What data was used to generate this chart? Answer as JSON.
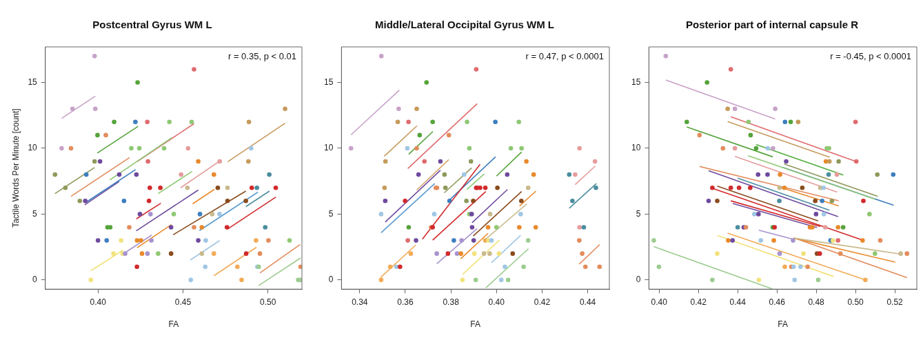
{
  "chart_data": [
    {
      "type": "scatter",
      "title": "Postcentral Gyrus WM L",
      "xlabel": "FA",
      "ylabel": "Tactile Words Per Minute [count]",
      "annotations": [
        "r = 0.35, p < 0.01"
      ],
      "xlim": [
        0.369,
        0.52
      ],
      "xticks": [
        {
          "value": 0.4,
          "label": "0.40"
        },
        {
          "value": 0.45,
          "label": "0.45"
        },
        {
          "value": 0.5,
          "label": "0.50"
        }
      ],
      "ylim": [
        -0.7,
        17.7
      ],
      "yticks": [
        0,
        5,
        10,
        15
      ],
      "series": [
        {
          "marker": "circle",
          "x": [
            0.398,
            0.4233,
            0.385,
            0.3984,
            0.4095,
            0.422,
            0.429,
            0.442,
            0.3997,
            0.4046,
            0.3786,
            0.3841,
            0.4196,
            0.4243,
            0.4389,
            0.398,
            0.4012,
            0.4294,
            0.3747,
            0.3931,
            0.4125,
            0.4226,
            0.3808,
            0.4305,
            0.4367,
            0.3893,
            0.3925,
            0.4153,
            0.43,
            0.4247,
            0.4309,
            0.4056,
            0.4072,
            0.4184,
            0.443,
            0.4,
            0.4051,
            0.4136,
            0.423,
            0.4253,
            0.4314,
            0.4091,
            0.4145,
            0.416,
            0.4259,
            0.4291,
            0.4354,
            0.443,
            0.4229,
            0.3958,
            0.4565,
            0.5101,
            0.4551,
            0.4888,
            0.453,
            0.4901,
            0.459,
            0.4716,
            0.4885,
            0.4489,
            0.4682,
            0.5008,
            0.4526,
            0.4705,
            0.4762,
            0.4905,
            0.4935,
            0.5046,
            0.4762,
            0.487,
            0.4446,
            0.46,
            0.4672,
            0.4715,
            0.4565,
            0.4611,
            0.4759,
            0.4984,
            0.459,
            0.4634,
            0.493,
            0.5003,
            0.5127,
            0.4611,
            0.4682,
            0.4872,
            0.4953,
            0.4631,
            0.482,
            0.4938,
            0.4946,
            0.5192,
            0.4546,
            0.4845,
            0.5178,
            0.5192
          ],
          "values": [
            17,
            15,
            13,
            13,
            12,
            12,
            12,
            12,
            11,
            11,
            10,
            10,
            10,
            10,
            10,
            9,
            9,
            9,
            8,
            8,
            8,
            8,
            7,
            7,
            7,
            6,
            6,
            6,
            6,
            5,
            5,
            4,
            4,
            4,
            4,
            3,
            3,
            3,
            3,
            3,
            3,
            2,
            2,
            2,
            2,
            2,
            2,
            2,
            1,
            0,
            16,
            13,
            12,
            12,
            10,
            10,
            9,
            9,
            9,
            8,
            8,
            8,
            7,
            7,
            7,
            7,
            7,
            7,
            6,
            6,
            5,
            5,
            5,
            5,
            4,
            4,
            4,
            4,
            3,
            3,
            3,
            3,
            3,
            2,
            2,
            2,
            2,
            1,
            1,
            1,
            1,
            1,
            0,
            0,
            0,
            0
          ],
          "colors": [
            "#c8a2c8",
            "#55a33b",
            "#c8a2c8",
            "#c8a2c8",
            "#55a33b",
            "#3d7ebf",
            "#df6b6e",
            "#8fc874",
            "#55a33b",
            "#e38c5c",
            "#c8a2c8",
            "#e38c5c",
            "#8fc874",
            "#8fc874",
            "#8fc874",
            "#8e9a5b",
            "#6e4a9e",
            "#df6b6e",
            "#8e9a5b",
            "#3d7ebf",
            "#6e4a9e",
            "#6e4a9e",
            "#8e9a5b",
            "#d12a2c",
            "#d12a2c",
            "#8e9a5b",
            "#6e4a9e",
            "#3d7ebf",
            "#d12a2c",
            "#6e4a9e",
            "#a793cf",
            "#55a33b",
            "#55a33b",
            "#e38c5c",
            "#6e4a9e",
            "#6e4a9e",
            "#3d7ebf",
            "#f1e27c",
            "#e9892a",
            "#e9892a",
            "#a793cf",
            "#f1e27c",
            "#f1e27c",
            "#a793cf",
            "#e9892a",
            "#a793cf",
            "#8fc874",
            "#8a4b1d",
            "#d12a2c",
            "#f1e27c",
            "#df6b6e",
            "#c59a5a",
            "#8fc874",
            "#c59a5a",
            "#e69c9c",
            "#a0c6e4",
            "#e9892a",
            "#e69c9c",
            "#c59a5a",
            "#e69c9c",
            "#e9892a",
            "#4b8d9f",
            "#c9ba8c",
            "#8a4b1d",
            "#c9ba8c",
            "#d12a2c",
            "#4b8d9f",
            "#d12a2c",
            "#8a4b1d",
            "#8a4b1d",
            "#8fc874",
            "#3d7ebf",
            "#c9ba8c",
            "#a0c6e4",
            "#e38c5c",
            "#e9892a",
            "#d12a2c",
            "#4b8d9f",
            "#6e4a9e",
            "#a0c6e4",
            "#f1ab56",
            "#e38c5c",
            "#8fc874",
            "#c9ba8c",
            "#f1ab56",
            "#d12a2c",
            "#e38c5c",
            "#a0c6e4",
            "#f1ab56",
            "#a0c6e4",
            "#9ccc8f",
            "#e38c5c",
            "#a0c6e4",
            "#f1ab56",
            "#9ccc8f",
            "#9ccc8f"
          ]
        },
        {
          "type": "line",
          "color": "#c8a2c8",
          "x": [
            0.3786,
            0.3984
          ],
          "values": [
            12.27,
            13.96
          ]
        },
        {
          "type": "line",
          "color": "#55a33b",
          "x": [
            0.3996,
            0.4236
          ],
          "values": [
            9.64,
            11.67
          ]
        },
        {
          "type": "line",
          "color": "#8e9a5b",
          "x": [
            0.3747,
            0.398
          ],
          "values": [
            6.56,
            8.54
          ]
        },
        {
          "type": "line",
          "color": "#e38c5c",
          "x": [
            0.3841,
            0.4186
          ],
          "values": [
            6.35,
            9.3
          ]
        },
        {
          "type": "line",
          "color": "#8fc874",
          "x": [
            0.407,
            0.4434
          ],
          "values": [
            7.6,
            10.8
          ]
        },
        {
          "type": "line",
          "color": "#df6b6e",
          "x": [
            0.423,
            0.4565
          ],
          "values": [
            8.98,
            11.87
          ]
        },
        {
          "type": "line",
          "color": "#3d7ebf",
          "x": [
            0.3931,
            0.4221
          ],
          "values": [
            5.91,
            8.38
          ]
        },
        {
          "type": "line",
          "color": "#6e4a9e",
          "x": [
            0.3922,
            0.4125
          ],
          "values": [
            5.71,
            7.48
          ]
        },
        {
          "type": "line",
          "color": "#d12a2c",
          "x": [
            0.4226,
            0.437
          ],
          "values": [
            4.64,
            5.83
          ]
        },
        {
          "type": "line",
          "color": "#6e4a9e",
          "x": [
            0.4225,
            0.459
          ],
          "values": [
            3.73,
            6.83
          ]
        },
        {
          "type": "line",
          "color": "#a793cf",
          "x": [
            0.4152,
            0.4316
          ],
          "values": [
            2.01,
            3.41
          ]
        },
        {
          "type": "line",
          "color": "#e9892a",
          "x": [
            0.423,
            0.4432
          ],
          "values": [
            2.45,
            4.2
          ]
        },
        {
          "type": "line",
          "color": "#f1e27c",
          "x": [
            0.3958,
            0.4146
          ],
          "values": [
            0.7,
            2.26
          ]
        },
        {
          "type": "line",
          "color": "#8fc874",
          "x": [
            0.4354,
            0.4554
          ],
          "values": [
            6.56,
            8.25
          ]
        },
        {
          "type": "line",
          "color": "#e69c9c",
          "x": [
            0.4486,
            0.4716
          ],
          "values": [
            7.0,
            9.03
          ]
        },
        {
          "type": "line",
          "color": "#e9892a",
          "x": [
            0.4557,
            0.4685
          ],
          "values": [
            5.78,
            6.88
          ]
        },
        {
          "type": "line",
          "color": "#8a4b1d",
          "x": [
            0.4442,
            0.487
          ],
          "values": [
            3.43,
            6.75
          ]
        },
        {
          "type": "line",
          "color": "#5b9bd0",
          "x": [
            0.4597,
            0.4941
          ],
          "values": [
            3.75,
            6.67
          ]
        },
        {
          "type": "line",
          "color": "#4b8d9f",
          "x": [
            0.487,
            0.5009
          ],
          "values": [
            5.57,
            6.75
          ]
        },
        {
          "type": "line",
          "color": "#d12a2c",
          "x": [
            0.4762,
            0.5047
          ],
          "values": [
            3.86,
            6.3
          ]
        },
        {
          "type": "line",
          "color": "#c59a5a",
          "x": [
            0.4764,
            0.5101
          ],
          "values": [
            8.98,
            11.9
          ]
        },
        {
          "type": "line",
          "color": "#a0c6e4",
          "x": [
            0.4543,
            0.4716
          ],
          "values": [
            1.51,
            2.99
          ]
        },
        {
          "type": "line",
          "color": "#f1ab56",
          "x": [
            0.4682,
            0.4932
          ],
          "values": [
            0.32,
            2.48
          ]
        },
        {
          "type": "line",
          "color": "#e38c5c",
          "x": [
            0.4953,
            0.519
          ],
          "values": [
            0.54,
            2.7
          ]
        },
        {
          "type": "line",
          "color": "#9ccc8f",
          "x": [
            0.4946,
            0.5192
          ],
          "values": [
            -0.42,
            1.67
          ]
        }
      ]
    },
    {
      "type": "scatter",
      "title": "Middle/Lateral Occipital Gyrus WM L",
      "xlabel": "FA",
      "annotations": [
        "r = 0.47, p < 0.0001"
      ],
      "xlim": [
        0.332,
        0.4495
      ],
      "xticks": [
        {
          "value": 0.34,
          "label": "0.34"
        },
        {
          "value": 0.36,
          "label": "0.36"
        },
        {
          "value": 0.38,
          "label": "0.38"
        },
        {
          "value": 0.4,
          "label": "0.40"
        },
        {
          "value": 0.42,
          "label": "0.42"
        },
        {
          "value": 0.44,
          "label": "0.44"
        }
      ],
      "ylim": [
        -0.7,
        17.7
      ],
      "yticks": [
        0,
        5,
        10,
        15
      ],
      "series": [
        {
          "marker": "circle",
          "x": [
            0.3495,
            0.3911,
            0.3693,
            0.3571,
            0.365,
            0.3567,
            0.3614,
            0.372,
            0.3871,
            0.3663,
            0.3791,
            0.3362,
            0.3609,
            0.365,
            0.3881,
            0.3513,
            0.3684,
            0.3754,
            0.3888,
            0.3658,
            0.3772,
            0.3858,
            0.3509,
            0.3734,
            0.3739,
            0.3776,
            0.3911,
            0.3512,
            0.3599,
            0.3794,
            0.3868,
            0.3898,
            0.3494,
            0.3727,
            0.3881,
            0.3891,
            0.3615,
            0.3713,
            0.372,
            0.3893,
            0.3611,
            0.3647,
            0.3813,
            0.3847,
            0.39,
            0.3624,
            0.3738,
            0.3787,
            0.3827,
            0.3844,
            0.3903,
            0.3534,
            0.3561,
            0.3577,
            0.3494,
            0.3851,
            0.3909,
            0.3995,
            0.4098,
            0.4063,
            0.411,
            0.4364,
            0.4131,
            0.4432,
            0.4047,
            0.4163,
            0.4319,
            0.4345,
            0.3915,
            0.3928,
            0.3951,
            0.4004,
            0.4139,
            0.4436,
            0.4109,
            0.4333,
            0.3972,
            0.4106,
            0.3963,
            0.4,
            0.41,
            0.4172,
            0.4364,
            0.4383,
            0.3951,
            0.3965,
            0.3978,
            0.4139,
            0.4363,
            0.3945,
            0.397,
            0.4011,
            0.4071,
            0.4376,
            0.4037,
            0.4119,
            0.439,
            0.4452,
            0.4021,
            0.4051
          ],
          "values": [
            17,
            16,
            15,
            13,
            13,
            12,
            12,
            12,
            12,
            11,
            11,
            10,
            10,
            10,
            10,
            9,
            9,
            9,
            9,
            8,
            8,
            8,
            7,
            7,
            7,
            7,
            7,
            6,
            6,
            6,
            6,
            6,
            5,
            5,
            5,
            5,
            4,
            4,
            4,
            4,
            3,
            3,
            3,
            3,
            3,
            2,
            2,
            2,
            2,
            2,
            2,
            1,
            1,
            1,
            0,
            0,
            0,
            12,
            12,
            10,
            10,
            10,
            9,
            9,
            8,
            8,
            8,
            8,
            7,
            7,
            7,
            7,
            7,
            7,
            6,
            6,
            5,
            5,
            4,
            4,
            4,
            4,
            4,
            4,
            3,
            3,
            3,
            3,
            3,
            2,
            2,
            2,
            2,
            2,
            1,
            1,
            1,
            1,
            0,
            0
          ],
          "colors": [
            "#c8a2c8",
            "#df6b6e",
            "#55a33b",
            "#c8a2c8",
            "#c59a5a",
            "#c59a5a",
            "#df6b6e",
            "#55a33b",
            "#8fc874",
            "#55a33b",
            "#e38c5c",
            "#c8a2c8",
            "#a0c6e4",
            "#e38c5c",
            "#8fc874",
            "#c59a5a",
            "#df6b6e",
            "#6e4a9e",
            "#8e9a5b",
            "#6e4a9e",
            "#8e9a5b",
            "#a0c6e4",
            "#c59a5a",
            "#e38c5c",
            "#e38c5c",
            "#8e9a5b",
            "#d12a2c",
            "#6e4a9e",
            "#d12a2c",
            "#3d7ebf",
            "#8e9a5b",
            "#8a4b1d",
            "#a0c6e4",
            "#a0c6e4",
            "#8fc874",
            "#6e4a9e",
            "#55a33b",
            "#e38c5c",
            "#d12a2c",
            "#6e4a9e",
            "#df6b6e",
            "#6e4a9e",
            "#3d7ebf",
            "#a793cf",
            "#6e4a9e",
            "#f1ab56",
            "#a793cf",
            "#d12a2c",
            "#a793cf",
            "#e9892a",
            "#f1e27c",
            "#f1ab56",
            "#a0c6e4",
            "#d12a2c",
            "#f1ab56",
            "#f1e27c",
            "#9ccc8f",
            "#3d7ebf",
            "#8fc874",
            "#8fc874",
            "#8fc874",
            "#e69c9c",
            "#e9892a",
            "#e69c9c",
            "#6e4a9e",
            "#e9892a",
            "#4b8d9f",
            "#e69c9c",
            "#d12a2c",
            "#d12a2c",
            "#d12a2c",
            "#8a4b1d",
            "#c9ba8c",
            "#4b8d9f",
            "#8a4b1d",
            "#4b8d9f",
            "#c9ba8c",
            "#a0c6e4",
            "#e9892a",
            "#8fc874",
            "#e9892a",
            "#e9892a",
            "#e69c9c",
            "#4b8d9f",
            "#f1ab56",
            "#f1e27c",
            "#a0c6e4",
            "#9ccc8f",
            "#e38c5c",
            "#c9ba8c",
            "#c9ba8c",
            "#f1e27c",
            "#8a4b1d",
            "#e38c5c",
            "#a0c6e4",
            "#9ccc8f",
            "#e38c5c",
            "#e38c5c",
            "#a0c6e4",
            "#9ccc8f"
          ]
        },
        {
          "type": "line",
          "color": "#c8a2c8",
          "x": [
            0.3362,
            0.3574
          ],
          "values": [
            11.02,
            14.42
          ]
        },
        {
          "type": "line",
          "color": "#c59a5a",
          "x": [
            0.3508,
            0.3651
          ],
          "values": [
            9.4,
            11.7
          ]
        },
        {
          "type": "line",
          "color": "#55a33b",
          "x": [
            0.3615,
            0.3721
          ],
          "values": [
            9.55,
            11.27
          ]
        },
        {
          "type": "line",
          "color": "#df6b6e",
          "x": [
            0.3611,
            0.3915
          ],
          "values": [
            8.46,
            13.38
          ]
        },
        {
          "type": "line",
          "color": "#d9a66e",
          "x": [
            0.365,
            0.3791
          ],
          "values": [
            6.83,
            9.14
          ]
        },
        {
          "type": "line",
          "color": "#6e4a9e",
          "x": [
            0.3512,
            0.3754
          ],
          "values": [
            4.4,
            8.33
          ]
        },
        {
          "type": "line",
          "color": "#5b9bd0",
          "x": [
            0.3494,
            0.3729
          ],
          "values": [
            3.59,
            7.32
          ]
        },
        {
          "type": "line",
          "color": "#d12a2c",
          "x": [
            0.3675,
            0.3928
          ],
          "values": [
            3.1,
            8.78
          ]
        },
        {
          "type": "line",
          "color": "#d12a2c",
          "x": [
            0.372,
            0.3953
          ],
          "values": [
            3.02,
            6.72
          ]
        },
        {
          "type": "line",
          "color": "#8e9a5b",
          "x": [
            0.3771,
            0.3891
          ],
          "values": [
            6.62,
            8.51
          ]
        },
        {
          "type": "line",
          "color": "#3d7ebf",
          "x": [
            0.3793,
            0.3996
          ],
          "values": [
            6.06,
            9.35
          ]
        },
        {
          "type": "line",
          "color": "#8fc874",
          "x": [
            0.387,
            0.3946
          ],
          "values": [
            6.87,
            8.05
          ]
        },
        {
          "type": "line",
          "color": "#f1ab56",
          "x": [
            0.3492,
            0.3646
          ],
          "values": [
            0.19,
            2.65
          ]
        },
        {
          "type": "line",
          "color": "#a793cf",
          "x": [
            0.3738,
            0.3915
          ],
          "values": [
            1.23,
            3.9
          ]
        },
        {
          "type": "line",
          "color": "#e9892a",
          "x": [
            0.3843,
            0.3963
          ],
          "values": [
            1.61,
            3.54
          ]
        },
        {
          "type": "line",
          "color": "#f1e27c",
          "x": [
            0.3851,
            0.4013
          ],
          "values": [
            0.42,
            3.02
          ]
        },
        {
          "type": "line",
          "color": "#55a33b",
          "x": [
            0.4,
            0.411
          ],
          "values": [
            7.89,
            9.72
          ]
        },
        {
          "type": "line",
          "color": "#6e4a9e",
          "x": [
            0.3893,
            0.4048
          ],
          "values": [
            4.35,
            6.87
          ]
        },
        {
          "type": "line",
          "color": "#8a4b1d",
          "x": [
            0.3898,
            0.411
          ],
          "values": [
            3.34,
            6.72
          ]
        },
        {
          "type": "line",
          "color": "#e9892a",
          "x": [
            0.4101,
            0.4173
          ],
          "values": [
            5.62,
            6.75
          ]
        },
        {
          "type": "line",
          "color": "#c9ba8c",
          "x": [
            0.3953,
            0.4133
          ],
          "values": [
            3.1,
            5.78
          ]
        },
        {
          "type": "line",
          "color": "#a0c6e4",
          "x": [
            0.3978,
            0.4106
          ],
          "values": [
            1.31,
            3.39
          ]
        },
        {
          "type": "line",
          "color": "#9ccc8f",
          "x": [
            0.3953,
            0.414
          ],
          "values": [
            -0.6,
            2.37
          ]
        },
        {
          "type": "line",
          "color": "#e69c9c",
          "x": [
            0.4345,
            0.4433
          ],
          "values": [
            7.24,
            8.65
          ]
        },
        {
          "type": "line",
          "color": "#4b8d9f",
          "x": [
            0.4319,
            0.4438
          ],
          "values": [
            5.45,
            7.32
          ]
        },
        {
          "type": "line",
          "color": "#e38c5c",
          "x": [
            0.4363,
            0.4453
          ],
          "values": [
            1.2,
            2.69
          ]
        }
      ]
    },
    {
      "type": "scatter",
      "title": "Posterior part of internal capsule R",
      "xlabel": "FA",
      "annotations": [
        "r = -0.45, p < 0.0001"
      ],
      "xlim": [
        0.3948,
        0.5312
      ],
      "xticks": [
        {
          "value": 0.4,
          "label": "0.40"
        },
        {
          "value": 0.42,
          "label": "0.42"
        },
        {
          "value": 0.44,
          "label": "0.44"
        },
        {
          "value": 0.46,
          "label": "0.46"
        },
        {
          "value": 0.48,
          "label": "0.48"
        },
        {
          "value": 0.5,
          "label": "0.50"
        },
        {
          "value": 0.52,
          "label": "0.52"
        }
      ],
      "ylim": [
        -0.7,
        17.7
      ],
      "yticks": [
        0,
        5,
        10,
        15
      ],
      "series": [
        {
          "marker": "circle",
          "x": [
            0.4034,
            0.4365,
            0.4244,
            0.4349,
            0.4386,
            0.4591,
            0.4141,
            0.4455,
            0.4641,
            0.467,
            0.4708,
            0.5,
            0.4206,
            0.4466,
            0.4325,
            0.4386,
            0.4494,
            0.4553,
            0.458,
            0.4854,
            0.4865,
            0.4647,
            0.4849,
            0.4867,
            0.4914,
            0.5004,
            0.4504,
            0.4552,
            0.4616,
            0.4863,
            0.4905,
            0.5111,
            0.5192,
            0.4271,
            0.4365,
            0.4407,
            0.4464,
            0.4614,
            0.4638,
            0.4729,
            0.4821,
            0.4837,
            0.4252,
            0.4296,
            0.4612,
            0.4795,
            0.483,
            0.488,
            0.504,
            0.4485,
            0.4506,
            0.4799,
            0.4839,
            0.5071,
            0.44,
            0.4431,
            0.4442,
            0.4579,
            0.4588,
            0.4768,
            0.478,
            0.4846,
            0.4911,
            0.4937,
            0.3973,
            0.4352,
            0.4374,
            0.4518,
            0.4584,
            0.4682,
            0.4873,
            0.4885,
            0.4911,
            0.5036,
            0.5126,
            0.4296,
            0.4614,
            0.4735,
            0.4804,
            0.4818,
            0.4923,
            0.5099,
            0.523,
            0.5262,
            0.3999,
            0.464,
            0.4673,
            0.4685,
            0.472,
            0.4756,
            0.4271,
            0.4508,
            0.469,
            0.481,
            0.505
          ],
          "values": [
            17,
            16,
            15,
            13,
            13,
            13,
            12,
            12,
            12,
            12,
            12,
            12,
            11,
            11,
            10,
            10,
            10,
            10,
            10,
            10,
            10,
            9,
            9,
            9,
            9,
            9,
            8,
            8,
            8,
            8,
            8,
            8,
            8,
            7,
            7,
            7,
            7,
            7,
            7,
            7,
            7,
            7,
            6,
            6,
            6,
            6,
            6,
            6,
            6,
            5,
            5,
            5,
            5,
            5,
            4,
            4,
            4,
            4,
            4,
            4,
            4,
            4,
            4,
            4,
            3,
            3,
            3,
            3,
            3,
            3,
            3,
            3,
            3,
            3,
            3,
            2,
            2,
            2,
            2,
            2,
            2,
            2,
            2,
            2,
            1,
            1,
            1,
            1,
            1,
            1,
            0,
            0,
            0,
            0,
            0
          ],
          "colors": [
            "#c8a2c8",
            "#df6b6e",
            "#55a33b",
            "#c59a5a",
            "#c8a2c8",
            "#c8a2c8",
            "#55a33b",
            "#8fc874",
            "#3d7ebf",
            "#55a33b",
            "#c59a5a",
            "#df6b6e",
            "#e38c5c",
            "#55a33b",
            "#e38c5c",
            "#e69c9c",
            "#55a33b",
            "#a0c6e4",
            "#c8a2c8",
            "#8fc874",
            "#8fc874",
            "#6e4a9e",
            "#e9892a",
            "#c59a5a",
            "#8e9a5b",
            "#df6b6e",
            "#6e4a9e",
            "#6e4a9e",
            "#e9892a",
            "#4b8d9f",
            "#e69c9c",
            "#8e9a5b",
            "#3d7ebf",
            "#d12a2c",
            "#d12a2c",
            "#d12a2c",
            "#d12a2c",
            "#c9ba8c",
            "#e9892a",
            "#8a4b1d",
            "#c9ba8c",
            "#a0c6e4",
            "#6e4a9e",
            "#8a4b1d",
            "#4b8d9f",
            "#8a4b1d",
            "#3d7ebf",
            "#8e9a5b",
            "#d12a2c",
            "#a0c6e4",
            "#6e4a9e",
            "#6e4a9e",
            "#a0c6e4",
            "#8fc874",
            "#4b8d9f",
            "#6e4a9e",
            "#e38c5c",
            "#55a33b",
            "#d12a2c",
            "#e9892a",
            "#e9892a",
            "#e69c9c",
            "#e9892a",
            "#55a33b",
            "#9ccc8f",
            "#e9892a",
            "#6e4a9e",
            "#a0c6e4",
            "#e9892a",
            "#a793cf",
            "#3d7ebf",
            "#f1e27c",
            "#df6b6e",
            "#e9892a",
            "#e38c5c",
            "#f1e27c",
            "#a793cf",
            "#f1e27c",
            "#8a4b1d",
            "#d12a2c",
            "#e38c5c",
            "#8fc874",
            "#c9ba8c",
            "#e38c5c",
            "#9ccc8f",
            "#f1ab56",
            "#e38c5c",
            "#a0c6e4",
            "#a0c6e4",
            "#e38c5c",
            "#9ccc8f",
            "#f1e27c",
            "#a0c6e4",
            "#9ccc8f",
            "#f1ab56"
          ]
        },
        {
          "type": "line",
          "color": "#c8a2c8",
          "x": [
            0.4034,
            0.4591
          ],
          "values": [
            15.19,
            12.22
          ]
        },
        {
          "type": "line",
          "color": "#df6b6e",
          "x": [
            0.4365,
            0.5004
          ],
          "values": [
            12.39,
            8.99
          ]
        },
        {
          "type": "line",
          "color": "#c59a5a",
          "x": [
            0.4349,
            0.4869
          ],
          "values": [
            12.03,
            9.32
          ]
        },
        {
          "type": "line",
          "color": "#55a33b",
          "x": [
            0.4141,
            0.4579
          ],
          "values": [
            11.62,
            9.35
          ]
        },
        {
          "type": "line",
          "color": "#4fae3a",
          "x": [
            0.4494,
            0.4938
          ],
          "values": [
            10.29,
            7.97
          ]
        },
        {
          "type": "line",
          "color": "#e69c9c",
          "x": [
            0.4386,
            0.4907
          ],
          "values": [
            9.38,
            6.67
          ]
        },
        {
          "type": "line",
          "color": "#8fc874",
          "x": [
            0.4453,
            0.5101
          ],
          "values": [
            9.43,
            6.14
          ]
        },
        {
          "type": "line",
          "color": "#8e9a5b",
          "x": [
            0.4637,
            0.5113
          ],
          "values": [
            8.81,
            6.35
          ]
        },
        {
          "type": "line",
          "color": "#3d7ebf",
          "x": [
            0.4631,
            0.5194
          ],
          "values": [
            8.54,
            5.67
          ]
        },
        {
          "type": "line",
          "color": "#e38c5c",
          "x": [
            0.4206,
            0.4914
          ],
          "values": [
            8.62,
            6.02
          ]
        },
        {
          "type": "line",
          "color": "#6e4a9e",
          "x": [
            0.4252,
            0.4911
          ],
          "values": [
            8.3,
            4.81
          ]
        },
        {
          "type": "line",
          "color": "#4b8d9f",
          "x": [
            0.44,
            0.4867
          ],
          "values": [
            7.73,
            5.29
          ]
        },
        {
          "type": "line",
          "color": "#8a4b1d",
          "x": [
            0.4296,
            0.481
          ],
          "values": [
            7.13,
            4.48
          ]
        },
        {
          "type": "line",
          "color": "#d12a2c",
          "x": [
            0.4279,
            0.5038
          ],
          "values": [
            6.92,
            3.02
          ]
        },
        {
          "type": "line",
          "color": "#d12a2c",
          "x": [
            0.4365,
            0.4821
          ],
          "values": [
            6.01,
            4.07
          ]
        },
        {
          "type": "line",
          "color": "#6e4a9e",
          "x": [
            0.4375,
            0.4804
          ],
          "values": [
            5.81,
            3.99
          ]
        },
        {
          "type": "line",
          "color": "#a793cf",
          "x": [
            0.4508,
            0.4682
          ],
          "values": [
            3.78,
            3.1
          ]
        },
        {
          "type": "line",
          "color": "#f1ab56",
          "x": [
            0.4349,
            0.505
          ],
          "values": [
            3.56,
            0
          ]
        },
        {
          "type": "line",
          "color": "#f1e27c",
          "x": [
            0.4296,
            0.4889
          ],
          "values": [
            3.39,
            0.26
          ]
        },
        {
          "type": "line",
          "color": "#c9ba8c",
          "x": [
            0.4685,
            0.5232
          ],
          "values": [
            3.18,
            1.96
          ]
        },
        {
          "type": "line",
          "color": "#e9892a",
          "x": [
            0.4685,
            0.5202
          ],
          "values": [
            3.18,
            1.35
          ]
        },
        {
          "type": "line",
          "color": "#e38c5c",
          "x": [
            0.469,
            0.5262
          ],
          "values": [
            3.18,
            0.18
          ]
        },
        {
          "type": "line",
          "color": "#9ccc8f",
          "x": [
            0.3973,
            0.4576
          ],
          "values": [
            2.53,
            -0.68
          ]
        },
        {
          "type": "line",
          "color": "#e9892a",
          "x": [
            0.4625,
            0.4914
          ],
          "values": [
            7.0,
            5.62
          ]
        }
      ]
    }
  ]
}
